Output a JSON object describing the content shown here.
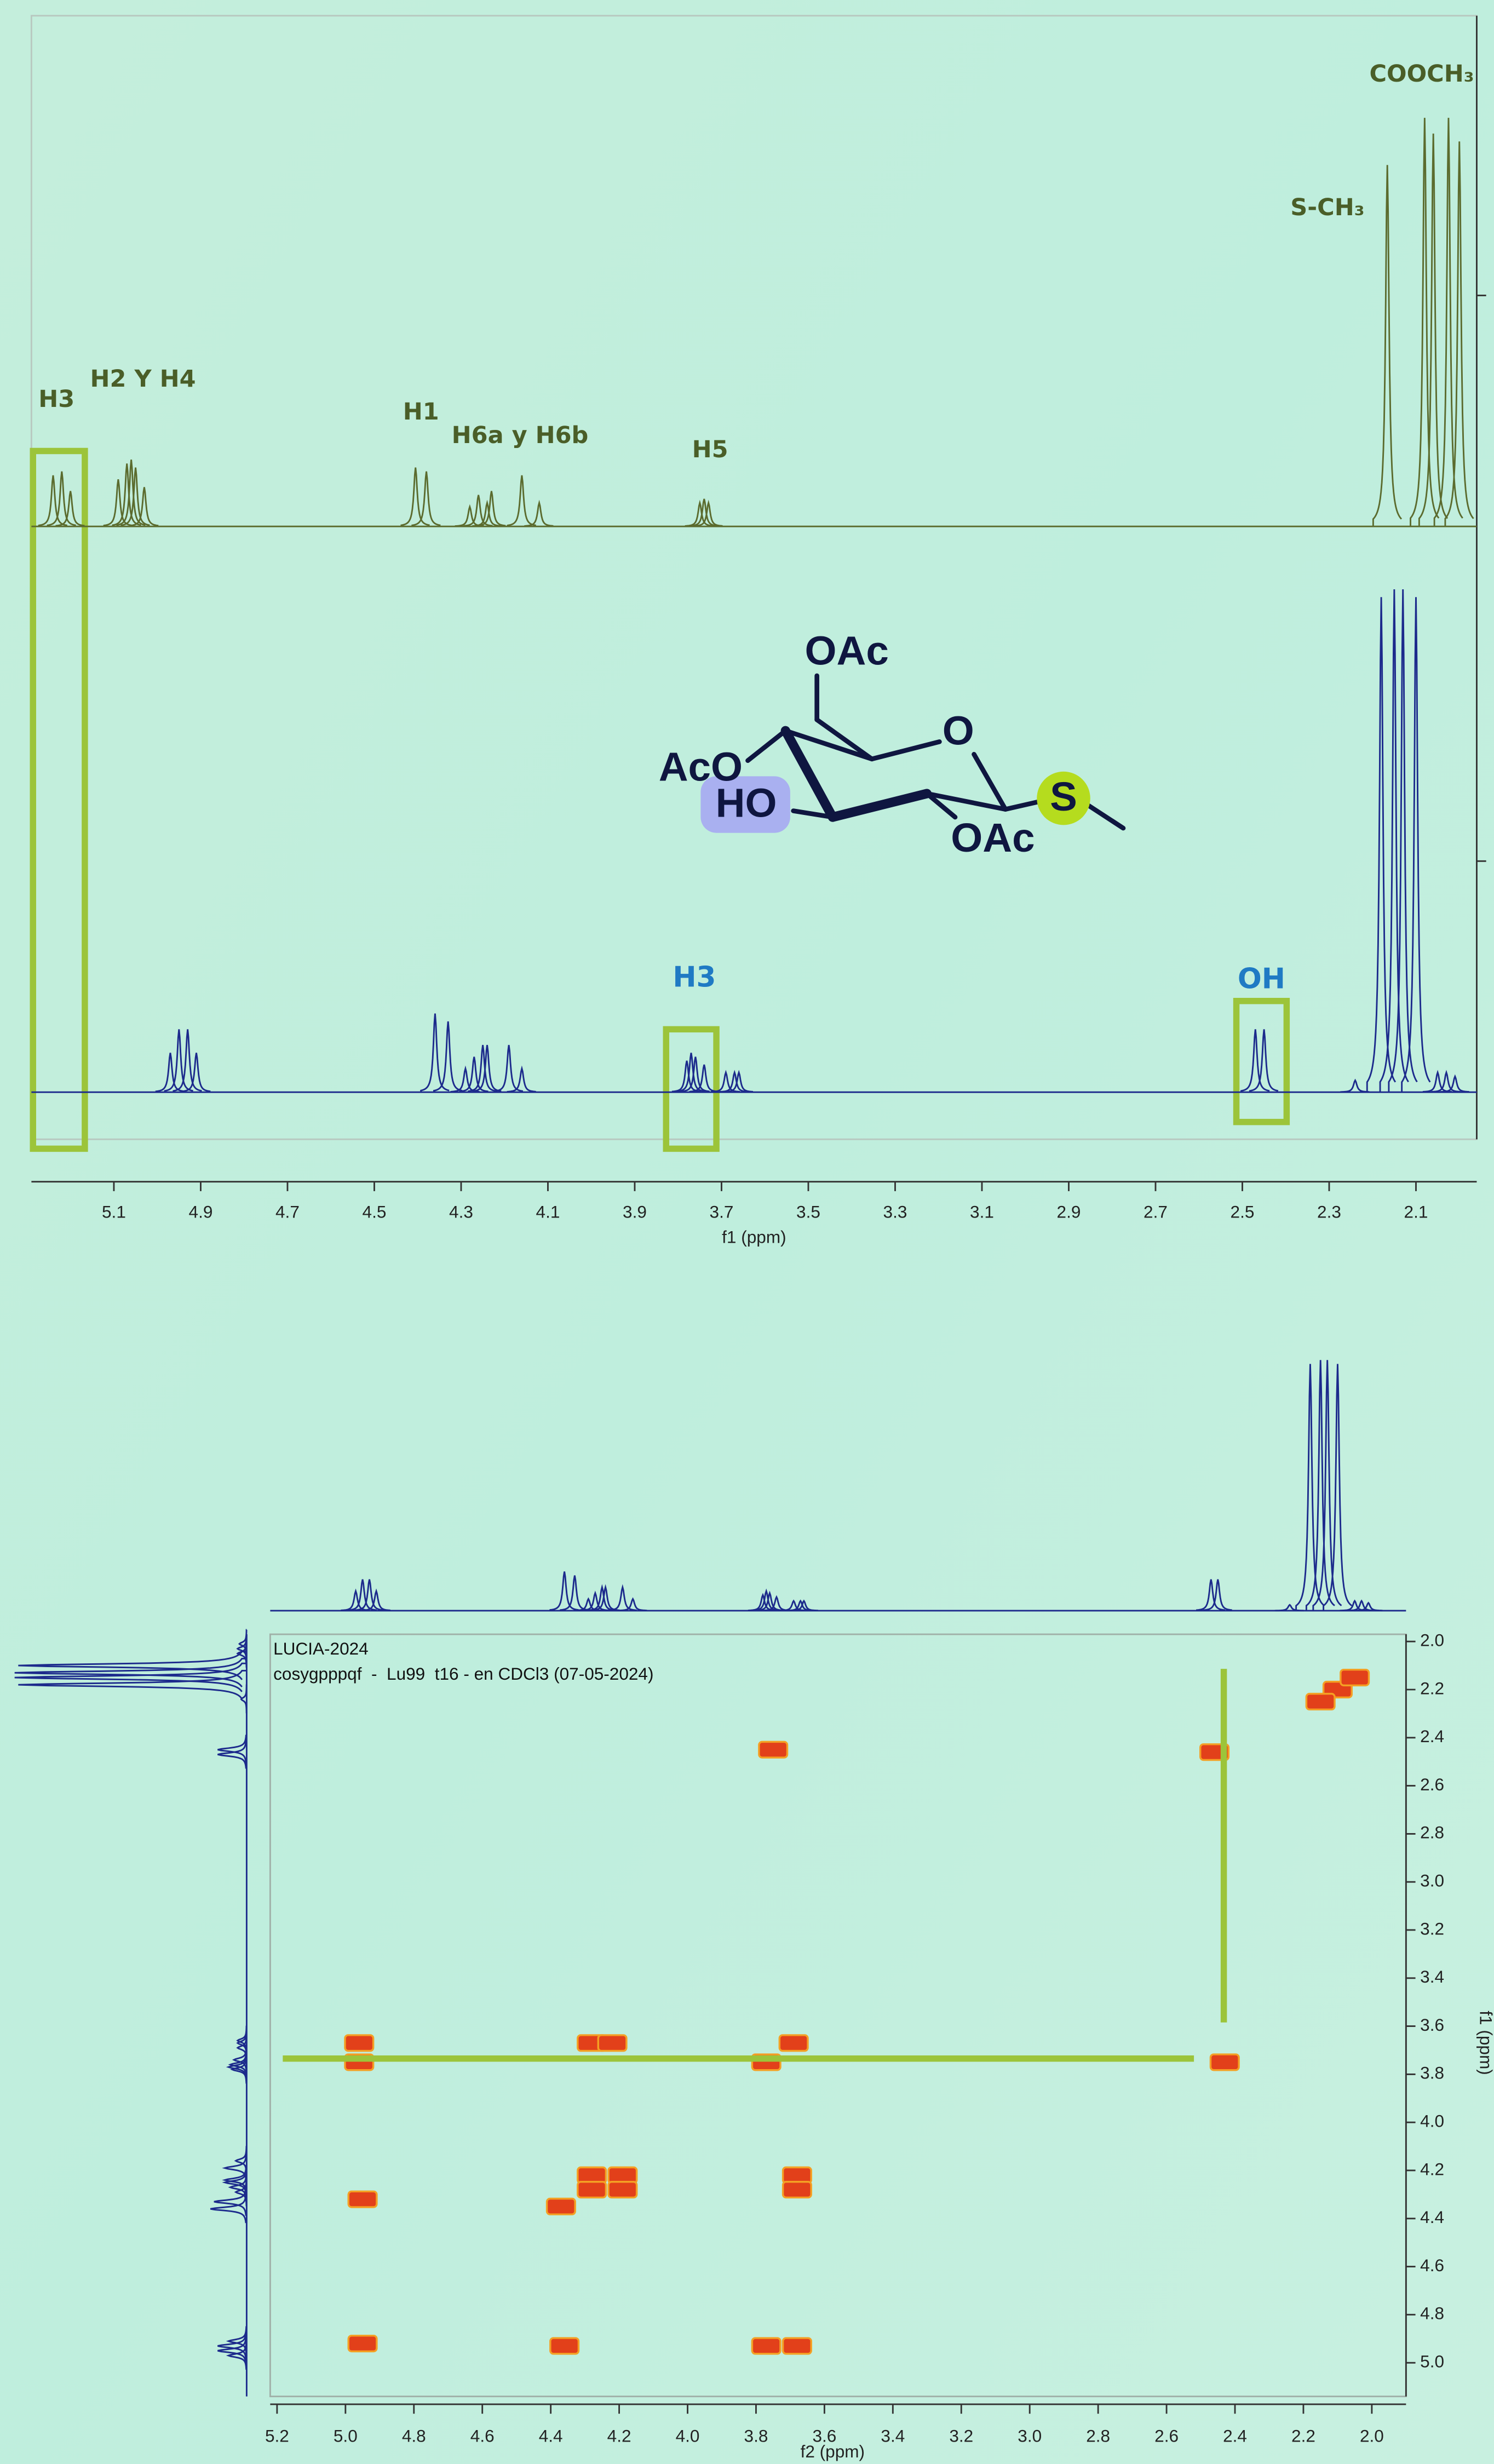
{
  "chart_data": [
    {
      "type": "spectrum",
      "xlabel": "f1 (ppm)",
      "xlim": [
        5.29,
        1.96
      ],
      "xticks": [
        5.1,
        4.9,
        4.7,
        4.5,
        4.3,
        4.1,
        3.9,
        3.7,
        3.5,
        3.3,
        3.1,
        2.9,
        2.7,
        2.5,
        2.3,
        2.1
      ],
      "ylim": [
        0,
        130
      ],
      "series": [
        {
          "color": "#5b6b2e",
          "x": [
            5.24,
            5.22,
            5.2,
            5.09,
            5.07,
            5.06,
            5.05,
            5.03,
            4.405,
            4.38,
            4.28,
            4.26,
            4.24,
            4.23,
            4.16,
            4.12,
            3.75,
            3.74,
            3.73,
            2.166,
            2.08,
            2.06,
            2.025,
            2.0
          ],
          "values": [
            13,
            14,
            9,
            12,
            16,
            17,
            15,
            10,
            15,
            14,
            5,
            8,
            6,
            9,
            13,
            6,
            6,
            7,
            6,
            92,
            104,
            100,
            104,
            98
          ]
        },
        {
          "color": "#1c2a8c",
          "x": [
            4.97,
            4.95,
            4.93,
            4.91,
            4.36,
            4.33,
            4.29,
            4.27,
            4.25,
            4.24,
            4.19,
            4.16,
            3.78,
            3.77,
            3.76,
            3.74,
            3.69,
            3.67,
            3.66,
            2.47,
            2.45,
            2.24,
            2.18,
            2.15,
            2.13,
            2.1,
            2.05,
            2.03,
            2.01
          ],
          "values": [
            10,
            16,
            16,
            10,
            20,
            18,
            6,
            9,
            12,
            12,
            12,
            6,
            8,
            10,
            9,
            7,
            5,
            5,
            5,
            16,
            16,
            3,
            126,
            128,
            128,
            126,
            5,
            5,
            4
          ]
        }
      ],
      "annotations": [
        "H3",
        "H2 Y H4",
        "H1",
        "H6a y H6b",
        "H5",
        "S-CH₃",
        "COOCH₃",
        "H3",
        "OH"
      ]
    },
    {
      "type": "cosy",
      "title": "LUCIA-2024",
      "subtitle": "cosygpppqf  -  Lu99  t16 - en CDCl3 (07-05-2024)",
      "xlabel": "f2 (ppm)",
      "ylabel": "f1 (ppm)",
      "xlim": [
        5.22,
        1.9
      ],
      "ylim": [
        1.97,
        5.14
      ],
      "xticks": [
        5.2,
        {
          "value": 5,
          "label": "5.0"
        },
        4.8,
        4.6,
        4.4,
        4.2,
        {
          "value": 4,
          "label": "4.0"
        },
        3.8,
        3.6,
        3.4,
        3.2,
        {
          "value": 3,
          "label": "3.0"
        },
        2.8,
        2.6,
        2.4,
        2.2,
        {
          "value": 2,
          "label": "2.0"
        }
      ],
      "yticks": [
        {
          "value": 2,
          "label": "2.0"
        },
        2.2,
        2.4,
        2.6,
        2.8,
        {
          "value": 3,
          "label": "3.0"
        },
        3.2,
        3.4,
        3.6,
        3.8,
        {
          "value": 4,
          "label": "4.0"
        },
        4.2,
        4.4,
        4.6,
        4.8,
        {
          "value": 5,
          "label": "5.0"
        }
      ],
      "series": [
        {
          "color": "#e2401a",
          "x": [
            2.1,
            2.15,
            2.05,
            3.75,
            2.46,
            2.43,
            4.96,
            4.96,
            4.28,
            4.22,
            3.69,
            3.77,
            4.95,
            4.37,
            4.28,
            4.28,
            4.19,
            4.19,
            3.68,
            3.68,
            4.95,
            4.36,
            3.77,
            3.68
          ],
          "values": [
            2.2,
            2.25,
            2.15,
            2.45,
            2.46,
            3.75,
            3.67,
            3.75,
            3.67,
            3.67,
            3.67,
            3.75,
            4.32,
            4.35,
            4.22,
            4.28,
            4.22,
            4.28,
            4.22,
            4.28,
            4.92,
            4.93,
            4.93,
            4.93
          ]
        }
      ]
    }
  ],
  "molecule": {
    "labels": [
      "OAc",
      "O",
      "AcO",
      "HO",
      "OAc",
      "S"
    ]
  }
}
